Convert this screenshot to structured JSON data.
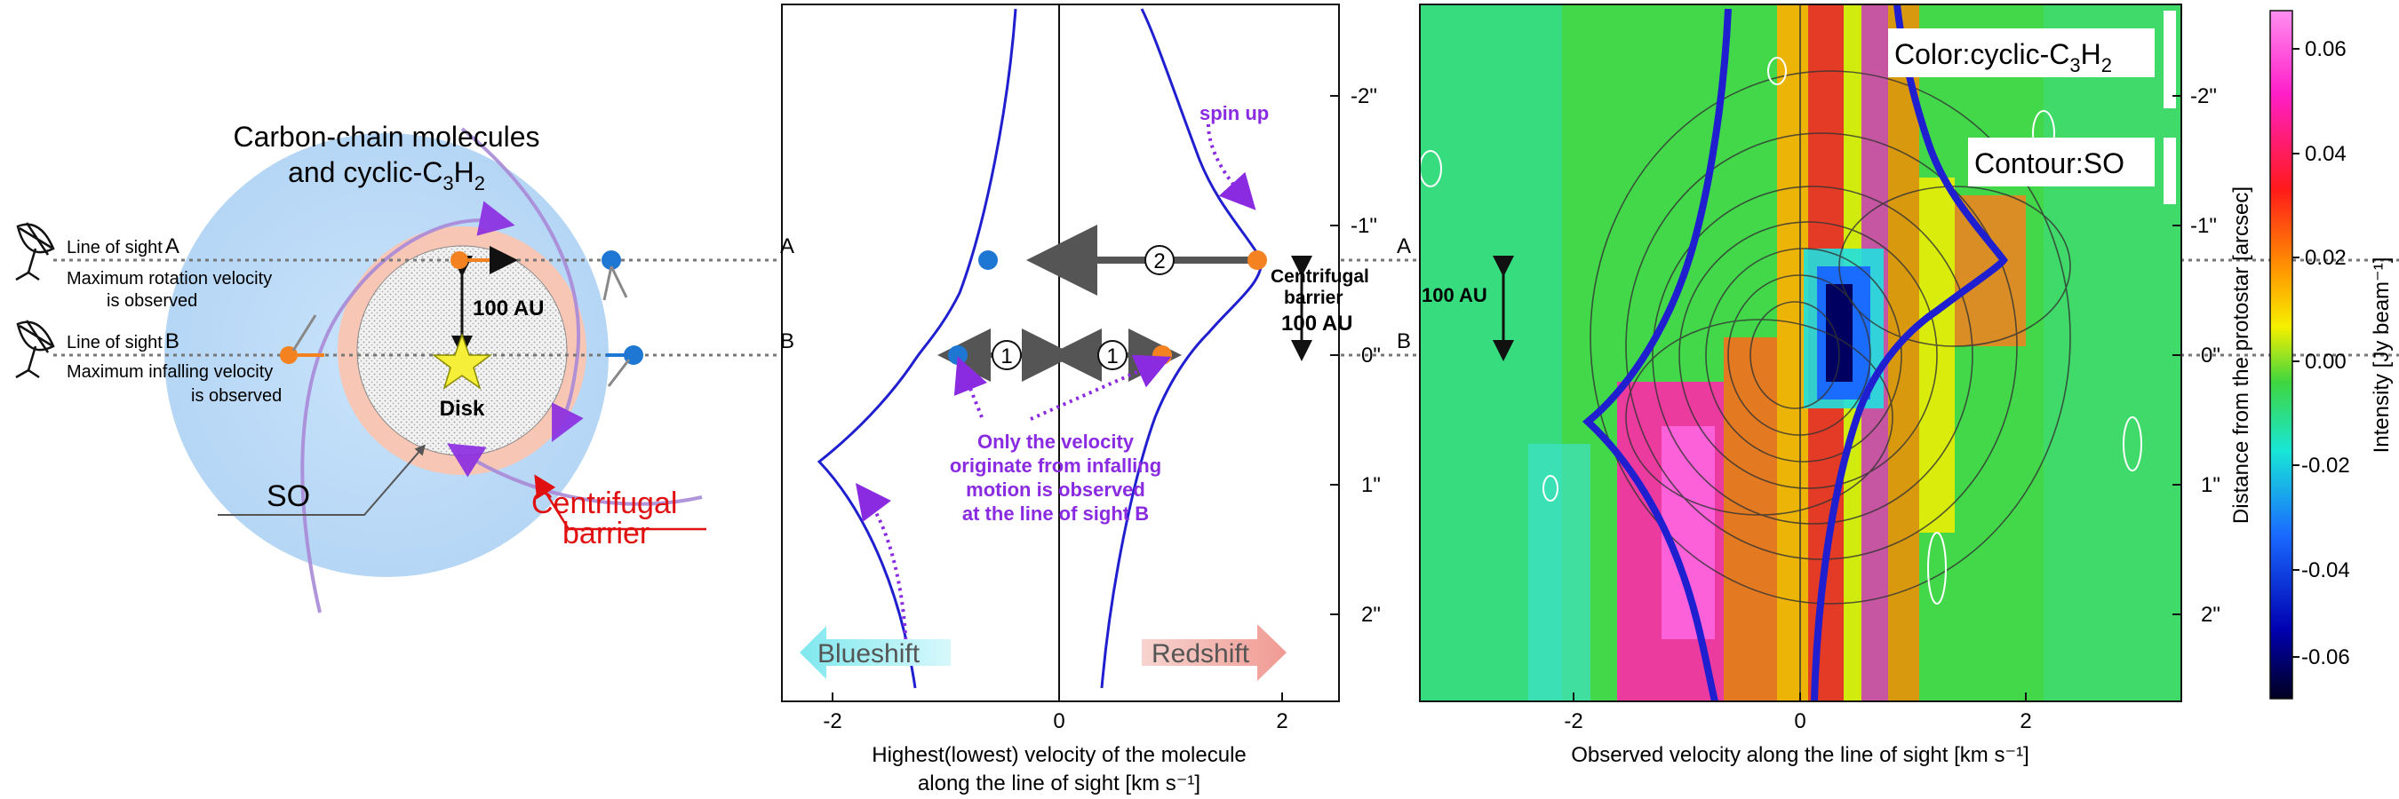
{
  "left_panel": {
    "title_line1": "Carbon-chain molecules",
    "title_line2": "and cyclic-C",
    "title_sub1": "3",
    "title_h": "H",
    "title_sub2": "2",
    "los_a_label": "Line of sight",
    "los_a_letter": "A",
    "los_a_desc1": "Maximum rotation velocity",
    "los_a_desc2": "is observed",
    "los_b_label": "Line of sight",
    "los_b_letter": "B",
    "los_b_desc1": "Maximum infalling velocity",
    "los_b_desc2": "is observed",
    "scale_label": "100 AU",
    "disk_label": "Disk",
    "so_label": "SO",
    "barrier_line1": "Centrifugal",
    "barrier_line2": "barrier"
  },
  "middle_panel": {
    "xlabel_line1": "Highest(lowest) velocity of the molecule",
    "xlabel_line2": "along the line of sight [km s⁻¹]",
    "x_ticks": [
      "-2",
      "0",
      "2"
    ],
    "y_ticks": [
      "-2\"",
      "-1\"",
      "0\"",
      "1\"",
      "2\""
    ],
    "label_a": "A",
    "label_b": "B",
    "marker_2": "2",
    "marker_1": "1",
    "spin_up": "spin up",
    "centrifugal_line1": "Centrifugal",
    "centrifugal_line2": "barrier",
    "centrifugal_line3": "100 AU",
    "note_line1": "Only the velocity",
    "note_line2": "originate from infalling",
    "note_line3": "motion is observed",
    "note_line4": "at the line of sight B",
    "blueshift": "Blueshift",
    "redshift": "Redshift"
  },
  "right_panel": {
    "xlabel": "Observed velocity along the line of sight [km s⁻¹]",
    "ylabel": "Distance from the protostar [arcsec]",
    "x_ticks": [
      "-2",
      "0",
      "2"
    ],
    "y_ticks": [
      "-2\"",
      "-1\"",
      "0\"",
      "1\"",
      "2\""
    ],
    "color_label": "Color:cyclic-C",
    "color_sub1": "3",
    "color_h": "H",
    "color_sub2": "2",
    "contour_label": "Contour:SO",
    "label_a": "A",
    "label_b": "B",
    "scale_label": "100 AU"
  },
  "colorbar": {
    "ticks": [
      "0.06",
      "0.04",
      "0.02",
      "0.00",
      "-0.02",
      "-0.04",
      "-0.06"
    ],
    "label": "Intensity [Jy beam⁻¹]"
  },
  "colors": {
    "envelope": "#bcdcf7",
    "barrier_ring": "#f7c6b4",
    "orange_dot": "#f58220",
    "blue_dot": "#1f77d4",
    "purple": "#8a2be2",
    "model_curve": "#1f1fd0"
  }
}
